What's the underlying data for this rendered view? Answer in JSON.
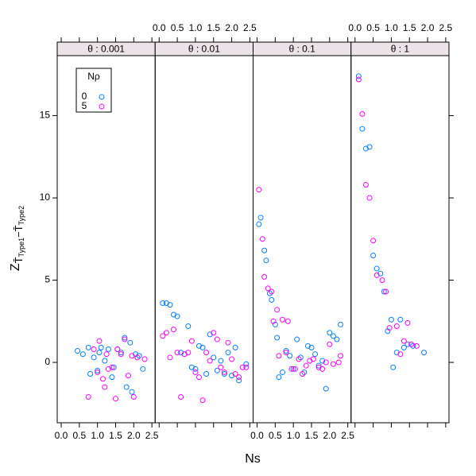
{
  "xlabel": "Ns",
  "ylabel_parts": [
    "Z",
    "T̄",
    "Type1",
    "−",
    "T̄",
    "Type2"
  ],
  "legend_title": "Nρ",
  "y_axis": {
    "ylim": [
      -3.67,
      18.65
    ],
    "yticks": [
      0,
      5,
      10,
      15
    ]
  },
  "chart_data": [
    {
      "type": "scatter",
      "title": "θ : 0.001",
      "xlim": [
        -0.11,
        2.59
      ],
      "xticks": [
        {
          "value": 0,
          "label": "0.0"
        },
        0.5,
        {
          "value": 1,
          "label": "1.0"
        },
        1.5,
        {
          "value": 2,
          "label": "2.0"
        },
        2.5
      ],
      "series": [
        {
          "name": "0",
          "color": "#0080ff",
          "x": [
            0.45,
            0.6,
            0.75,
            0.8,
            0.9,
            1.0,
            1.05,
            1.1,
            1.2,
            1.3,
            1.4,
            1.45,
            1.55,
            1.65,
            1.75,
            1.8,
            1.9,
            1.95,
            2.05,
            2.15,
            2.25
          ],
          "values": [
            0.7,
            0.5,
            0.9,
            -0.7,
            0.3,
            -0.5,
            0.6,
            0.9,
            0.1,
            0.8,
            -0.9,
            -0.3,
            0.8,
            0.6,
            1.5,
            -1.5,
            1.2,
            -1.8,
            0.5,
            0.4,
            -0.4
          ]
        },
        {
          "name": "5",
          "color": "#ff00ff",
          "x": [
            0.75,
            0.9,
            1.0,
            1.05,
            1.15,
            1.2,
            1.25,
            1.3,
            1.4,
            1.5,
            1.55,
            1.65,
            1.75,
            1.85,
            1.95,
            2.0,
            2.1,
            2.3
          ],
          "values": [
            -2.1,
            0.8,
            -0.6,
            1.3,
            -1.0,
            -1.5,
            0.5,
            -0.4,
            -0.3,
            -2.2,
            0.8,
            0.5,
            1.4,
            -0.8,
            0.4,
            -2.1,
            0.3,
            0.2
          ]
        }
      ]
    },
    {
      "type": "scatter",
      "title": "θ : 0.01",
      "xlim": [
        -0.11,
        2.59
      ],
      "xticks": [
        {
          "value": 0,
          "label": "0.0"
        },
        0.5,
        {
          "value": 1,
          "label": "1.0"
        },
        1.5,
        {
          "value": 2,
          "label": "2.0"
        },
        2.5
      ],
      "series": [
        {
          "name": "0",
          "color": "#0080ff",
          "x": [
            0.1,
            0.2,
            0.3,
            0.4,
            0.5,
            0.6,
            0.7,
            0.8,
            0.9,
            1.0,
            1.1,
            1.2,
            1.3,
            1.4,
            1.5,
            1.6,
            1.7,
            1.8,
            1.9,
            2.0,
            2.1,
            2.2,
            2.4
          ],
          "values": [
            3.6,
            3.6,
            3.5,
            2.9,
            2.8,
            0.6,
            0.5,
            2.2,
            -0.3,
            -0.4,
            1.0,
            0.9,
            -0.7,
            1.7,
            0.3,
            -0.5,
            0.1,
            -0.7,
            0.6,
            -0.8,
            0.9,
            -1.1,
            -0.1
          ]
        },
        {
          "name": "5",
          "color": "#ff00ff",
          "x": [
            0.1,
            0.2,
            0.3,
            0.4,
            0.5,
            0.6,
            0.7,
            0.8,
            0.9,
            1.0,
            1.1,
            1.2,
            1.3,
            1.4,
            1.5,
            1.6,
            1.7,
            1.8,
            1.9,
            2.0,
            2.1,
            2.2,
            2.3,
            2.4
          ],
          "values": [
            1.6,
            1.8,
            0.3,
            2.0,
            0.6,
            -2.1,
            0.5,
            0.6,
            1.3,
            -0.6,
            -0.9,
            -2.3,
            0.6,
            0.1,
            1.8,
            1.4,
            -0.3,
            -0.6,
            1.2,
            0.2,
            -0.7,
            -0.9,
            -0.3,
            -0.3
          ]
        }
      ]
    },
    {
      "type": "scatter",
      "title": "θ : 0.1",
      "xlim": [
        -0.11,
        2.59
      ],
      "xticks": [
        {
          "value": 0,
          "label": "0.0"
        },
        0.5,
        {
          "value": 1,
          "label": "1.0"
        },
        1.5,
        {
          "value": 2,
          "label": "2.0"
        },
        2.5
      ],
      "series": [
        {
          "name": "0",
          "color": "#0080ff",
          "x": [
            0.05,
            0.1,
            0.2,
            0.25,
            0.35,
            0.4,
            0.5,
            0.55,
            0.6,
            0.7,
            0.8,
            0.9,
            1.0,
            1.1,
            1.2,
            1.3,
            1.4,
            1.5,
            1.6,
            1.7,
            1.8,
            1.9,
            2.0,
            2.1,
            2.2,
            2.3
          ],
          "values": [
            8.4,
            8.8,
            6.8,
            6.2,
            4.2,
            3.8,
            2.3,
            1.5,
            -0.9,
            -0.6,
            0.7,
            0.4,
            -0.4,
            1.4,
            0.3,
            -0.6,
            1.0,
            0.9,
            0.5,
            -0.2,
            0.1,
            -1.6,
            1.8,
            1.6,
            1.4,
            2.3
          ]
        },
        {
          "name": "5",
          "color": "#ff00ff",
          "x": [
            0.05,
            0.15,
            0.2,
            0.3,
            0.4,
            0.45,
            0.55,
            0.6,
            0.7,
            0.8,
            0.85,
            0.95,
            1.05,
            1.15,
            1.25,
            1.35,
            1.45,
            1.55,
            1.7,
            1.8,
            1.9,
            2.0,
            2.1,
            2.25,
            2.3
          ],
          "values": [
            10.5,
            7.5,
            5.2,
            4.5,
            4.3,
            2.5,
            3.2,
            0.4,
            2.6,
            0.6,
            2.5,
            -0.4,
            -0.4,
            0.2,
            -0.7,
            -0.2,
            0.1,
            0.2,
            -0.3,
            -0.4,
            0.0,
            1.1,
            -0.1,
            0.0,
            0.4
          ]
        }
      ]
    },
    {
      "type": "scatter",
      "title": "θ : 1",
      "xlim": [
        -0.11,
        2.59
      ],
      "xticks": [
        {
          "value": 0,
          "label": "0.0"
        },
        0.5,
        {
          "value": 1,
          "label": "1.0"
        },
        1.5,
        {
          "value": 2,
          "label": "2.0"
        },
        2.5
      ],
      "series": [
        {
          "name": "0",
          "color": "#0080ff",
          "x": [
            0.1,
            0.2,
            0.3,
            0.4,
            0.5,
            0.6,
            0.7,
            0.8,
            0.9,
            1.0,
            1.05,
            1.15,
            1.25,
            1.35,
            1.45,
            1.6,
            1.9
          ],
          "values": [
            17.4,
            14.2,
            13.0,
            13.1,
            6.5,
            5.7,
            5.4,
            4.3,
            1.9,
            2.6,
            -0.3,
            0.6,
            2.6,
            0.9,
            1.1,
            1.0,
            0.6
          ]
        },
        {
          "name": "5",
          "color": "#ff00ff",
          "x": [
            0.1,
            0.2,
            0.3,
            0.4,
            0.5,
            0.6,
            0.75,
            0.85,
            0.95,
            1.15,
            1.25,
            1.35,
            1.45,
            1.55,
            1.7
          ],
          "values": [
            17.2,
            15.1,
            10.8,
            10.0,
            7.4,
            5.3,
            5.0,
            4.3,
            2.1,
            2.2,
            0.5,
            1.3,
            2.4,
            1.1,
            1.0
          ]
        }
      ]
    }
  ]
}
